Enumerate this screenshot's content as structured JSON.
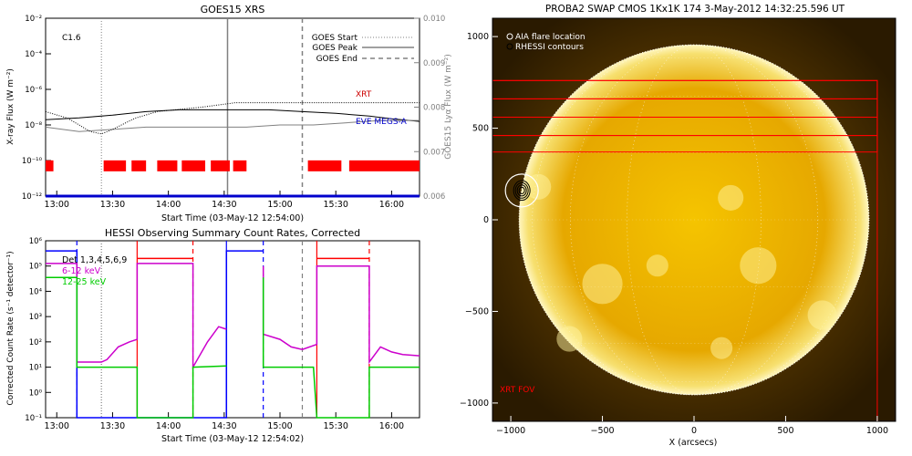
{
  "chart_data": [
    {
      "id": "goes",
      "type": "line",
      "title": "GOES15 XRS",
      "xlabel": "Start Time (03-May-12 12:54:00)",
      "ylabel": "X-ray Flux (W m⁻²)",
      "y2label": "GOES15 Lyα Flux (W m⁻²)",
      "annotation": "C1.6",
      "x_ticks": [
        "13:00",
        "13:30",
        "14:00",
        "14:30",
        "15:00",
        "15:30",
        "16:00"
      ],
      "y_ticks": [
        "10⁻¹²",
        "10⁻¹⁰",
        "10⁻⁸",
        "10⁻⁶",
        "10⁻⁴",
        "10⁻²"
      ],
      "y2_ticks": [
        "0.006",
        "0.007",
        "0.008",
        "0.009",
        "0.010"
      ],
      "xlim": [
        12.9,
        16.25
      ],
      "ylim_log": [
        -12,
        -2
      ],
      "y2lim": [
        0.006,
        0.01
      ],
      "legend": [
        "GOES Start",
        "GOES Peak",
        "GOES End"
      ],
      "legend_position": "top-right",
      "events": {
        "start": 13.4,
        "peak": 14.53,
        "end": 15.2
      },
      "series": [
        {
          "name": "XRT",
          "color": "#000000",
          "x": [
            12.9,
            13.2,
            13.5,
            13.8,
            14.1,
            14.3,
            14.6,
            14.9,
            15.2,
            15.5,
            15.8,
            16.0,
            16.25
          ],
          "y": [
            -7.7,
            -7.6,
            -7.45,
            -7.25,
            -7.15,
            -7.15,
            -7.15,
            -7.15,
            -7.25,
            -7.35,
            -7.5,
            -7.65,
            -7.8
          ]
        },
        {
          "name": "EVE MEGS-A",
          "color": "#0000cc",
          "x": [
            12.9,
            16.25
          ],
          "y": [
            -12,
            -12
          ]
        },
        {
          "color": "#808080",
          "x": [
            12.9,
            13.2,
            13.5,
            13.8,
            14.1,
            14.4,
            14.7,
            15.0,
            15.3,
            15.6,
            15.9,
            16.25
          ],
          "y": [
            0.00755,
            0.00745,
            0.0075,
            0.00755,
            0.00755,
            0.00755,
            0.00755,
            0.0076,
            0.0076,
            0.00765,
            0.0077,
            0.0077
          ]
        },
        {
          "color": "#000000",
          "x": [
            12.9,
            13.1,
            13.2,
            13.3,
            13.4,
            13.5,
            13.7,
            13.9,
            14.1,
            14.3,
            14.6,
            14.9,
            15.2,
            15.5,
            15.8,
            16.0,
            16.25
          ],
          "y": [
            0.0079,
            0.00775,
            0.0076,
            0.00745,
            0.0074,
            0.0075,
            0.00775,
            0.0079,
            0.00795,
            0.008,
            0.0081,
            0.0081,
            0.0081,
            0.0081,
            0.0081,
            0.0081,
            0.0081
          ]
        }
      ],
      "bars": [
        [
          12.9,
          12.97
        ],
        [
          13.42,
          13.62
        ],
        [
          13.67,
          13.8
        ],
        [
          13.9,
          14.08
        ],
        [
          14.12,
          14.33
        ],
        [
          14.38,
          14.55
        ],
        [
          14.58,
          14.7
        ],
        [
          15.25,
          15.55
        ],
        [
          15.62,
          16.25
        ]
      ],
      "bar_level": -10.3
    },
    {
      "id": "hessi",
      "type": "line",
      "title": "HESSI Observing Summary Count Rates, Corrected",
      "xlabel": "Start Time (03-May-12 12:54:02)",
      "ylabel": "Corrected Count Rate (s⁻¹ detector⁻¹)",
      "legend": [
        "Det 1,3,4,5,6,9",
        "6-12 keV",
        "12-25 keV"
      ],
      "legend_colors": [
        "#000000",
        "#cc00cc",
        "#00cc00"
      ],
      "legend_position": "top-left",
      "x_ticks": [
        "13:00",
        "13:30",
        "14:00",
        "14:30",
        "15:00",
        "15:30",
        "16:00"
      ],
      "y_ticks": [
        "10⁻¹",
        "10⁰",
        "10¹",
        "10²",
        "10³",
        "10⁴",
        "10⁵",
        "10⁶"
      ],
      "xlim": [
        12.9,
        16.25
      ],
      "ylim_log": [
        -1,
        6
      ],
      "vlines": [
        {
          "x": 13.18,
          "color": "#0000ff",
          "style": "dashed"
        },
        {
          "x": 13.4,
          "color": "#808080",
          "style": "dotted"
        },
        {
          "x": 13.72,
          "color": "#ff0000",
          "style": "solid"
        },
        {
          "x": 14.22,
          "color": "#ff0000",
          "style": "dashed"
        },
        {
          "x": 14.52,
          "color": "#0000ff",
          "style": "solid"
        },
        {
          "x": 14.85,
          "color": "#0000ff",
          "style": "dashed"
        },
        {
          "x": 15.2,
          "color": "#808080",
          "style": "dashed"
        },
        {
          "x": 15.33,
          "color": "#ff0000",
          "style": "solid"
        },
        {
          "x": 15.8,
          "color": "#ff0000",
          "style": "dashed"
        }
      ],
      "series": [
        {
          "name": "Det 1,3,4,5,6,9",
          "color": "#0000ff",
          "x": [
            12.9,
            13.18,
            13.18,
            14.52,
            14.52,
            14.85
          ],
          "y": [
            5.6,
            5.6,
            -1,
            -1,
            5.6,
            5.6
          ]
        },
        {
          "color": "#ff0000",
          "x": [
            13.72,
            14.22
          ],
          "y": [
            5.3,
            5.3
          ]
        },
        {
          "color": "#ff0000",
          "x": [
            15.33,
            15.8
          ],
          "y": [
            5.3,
            5.3
          ]
        },
        {
          "name": "6-12 keV",
          "color": "#cc00cc",
          "x": [
            12.9,
            13.18,
            13.18,
            13.4,
            13.45,
            13.55,
            13.65,
            13.72,
            13.72,
            14.22,
            14.22,
            14.35,
            14.45,
            14.52
          ],
          "y": [
            5.1,
            5.1,
            1.2,
            1.2,
            1.3,
            1.8,
            2.0,
            2.1,
            5.1,
            5.1,
            1.0,
            2.0,
            2.6,
            2.5
          ]
        },
        {
          "color": "#cc00cc",
          "x": [
            14.85,
            14.85,
            15.0,
            15.1,
            15.2,
            15.33,
            15.33,
            15.8,
            15.8,
            15.9,
            16.0,
            16.1,
            16.25
          ],
          "y": [
            5.0,
            2.3,
            2.1,
            1.8,
            1.7,
            1.9,
            5.0,
            5.0,
            1.2,
            1.8,
            1.6,
            1.5,
            1.45
          ]
        },
        {
          "name": "12-25 keV",
          "color": "#00cc00",
          "x": [
            12.9,
            13.18,
            13.18,
            13.7,
            13.72,
            13.72,
            14.22,
            14.22,
            14.52
          ],
          "y": [
            4.55,
            4.55,
            1.0,
            1.0,
            1.0,
            -1,
            -1,
            1.0,
            1.05
          ]
        },
        {
          "color": "#00cc00",
          "x": [
            14.85,
            14.85,
            15.3,
            15.33,
            15.33,
            15.8,
            15.8,
            16.25
          ],
          "y": [
            4.55,
            1.0,
            1.0,
            -1,
            -1,
            -1,
            1.0,
            1.0
          ]
        }
      ]
    },
    {
      "id": "swap",
      "type": "image",
      "title": "PROBA2 SWAP CMOS 1Kx1K 174   3-May-2012 14:32:25.596 UT",
      "xlabel": "X (arcsecs)",
      "ylabel": "",
      "x_ticks": [
        "−1000",
        "−500",
        "0",
        "500",
        "1000"
      ],
      "y_ticks": [
        "−1000",
        "−500",
        "0",
        "500",
        "1000"
      ],
      "xlim": [
        -1100,
        1100
      ],
      "ylim": [
        -1100,
        1100
      ],
      "legend": [
        "AIA flare location",
        "RHESSI contours"
      ],
      "fov_label": "XRT FOV",
      "flare_location": [
        -940,
        160
      ],
      "fov_boxes": [
        {
          "x0": -1100,
          "x1": 1000,
          "y0": -1100,
          "y1": 760
        },
        {
          "x0": -1100,
          "x1": 1000,
          "y0": 660,
          "y1": 760
        },
        {
          "x0": -1100,
          "x1": 1000,
          "y0": 560,
          "y1": 660
        },
        {
          "x0": -1100,
          "x1": 1000,
          "y0": 460,
          "y1": 560
        },
        {
          "x0": -1100,
          "x1": 1000,
          "y0": 370,
          "y1": 460
        }
      ]
    }
  ]
}
